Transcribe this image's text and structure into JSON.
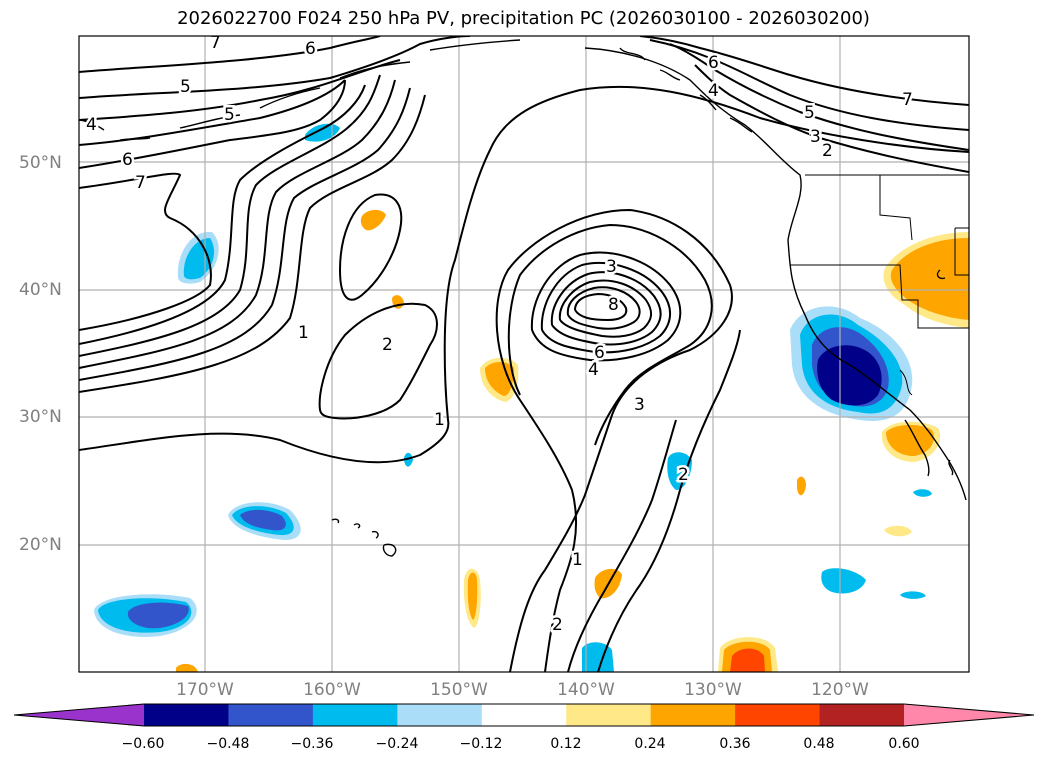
{
  "title": "2026022700 F024 250 hPa PV, precipitation PC (2026030100 - 2026030200)",
  "map": {
    "lat_labels": [
      "50°N",
      "40°N",
      "30°N",
      "20°N"
    ],
    "lon_labels": [
      "170°W",
      "160°W",
      "150°W",
      "140°W",
      "130°W",
      "120°W"
    ],
    "contour_labels": [
      "7",
      "6",
      "5",
      "5",
      "6",
      "7",
      "4",
      "1",
      "2",
      "1",
      "3",
      "8",
      "6",
      "4",
      "3",
      "2",
      "1",
      "2",
      "6",
      "4",
      "5",
      "3",
      "2",
      "7"
    ]
  },
  "colorbar": {
    "colors": [
      "#9933cc",
      "#000088",
      "#3355cc",
      "#00bbee",
      "#aaddf8",
      "#ffffff",
      "#ffe888",
      "#ffa500",
      "#ff4500",
      "#b22222",
      "#ff88aa"
    ],
    "ticks": [
      "−0.60",
      "−0.48",
      "−0.36",
      "−0.24",
      "−0.12",
      "0.12",
      "0.24",
      "0.36",
      "0.48",
      "0.60"
    ]
  }
}
